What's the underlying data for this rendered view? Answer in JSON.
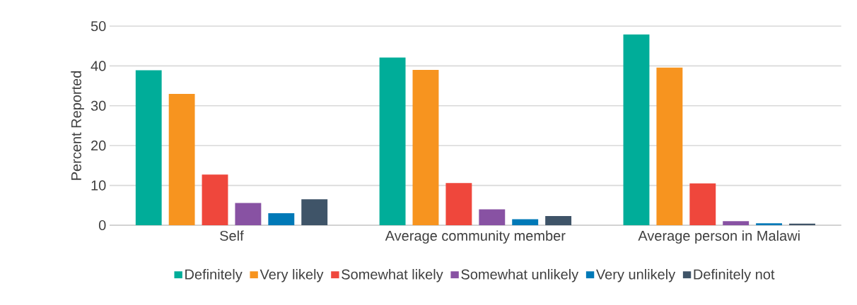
{
  "chart_data": {
    "type": "bar",
    "ylabel": "Percent Reported",
    "categories": [
      "Self",
      "Average community member",
      "Average person in Malawi"
    ],
    "series": [
      {
        "name": "Definitely",
        "color": "#00ad99",
        "values": [
          38.9,
          42.1,
          47.9
        ]
      },
      {
        "name": "Very likely",
        "color": "#f7941f",
        "values": [
          33.0,
          39.0,
          39.6
        ]
      },
      {
        "name": "Somewhat likely",
        "color": "#ef473c",
        "values": [
          12.7,
          10.6,
          10.5
        ]
      },
      {
        "name": "Somewhat unlikely",
        "color": "#8852a3",
        "values": [
          5.6,
          4.0,
          1.0
        ]
      },
      {
        "name": "Very unlikely",
        "color": "#0079b7",
        "values": [
          3.0,
          1.5,
          0.5
        ]
      },
      {
        "name": "Definitely not",
        "color": "#3f5468",
        "values": [
          6.5,
          2.3,
          0.4
        ]
      }
    ],
    "ylim": [
      0,
      50
    ],
    "yticks": [
      0,
      10,
      20,
      30,
      40,
      50
    ],
    "grid": "y",
    "legend": "bottom"
  }
}
